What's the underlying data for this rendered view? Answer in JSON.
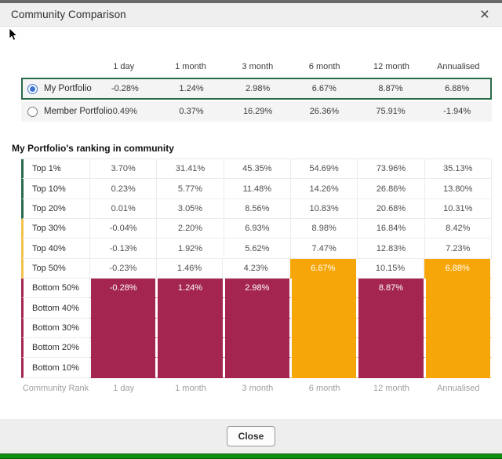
{
  "modal": {
    "title": "Community Comparison",
    "close_icon": "×",
    "close_button_label": "Close"
  },
  "columns": [
    "1 day",
    "1 month",
    "3 month",
    "6 month",
    "12 month",
    "Annualised"
  ],
  "portfolios": [
    {
      "label": "My Portfolio",
      "selected": true,
      "values": [
        "-0.28%",
        "1.24%",
        "2.98%",
        "6.67%",
        "8.87%",
        "6.88%"
      ]
    },
    {
      "label": "Member Portfolio",
      "selected": false,
      "values": [
        "0.49%",
        "0.37%",
        "16.29%",
        "26.36%",
        "75.91%",
        "-1.94%"
      ]
    }
  ],
  "ranking": {
    "title": "My Portfolio's ranking in community",
    "axis_label": "Community Rank",
    "colors": {
      "tier_green": "#2a6b4a",
      "tier_yellow": "#f0c24b",
      "tier_red": "#a4254f",
      "bar_red": "#a4254f",
      "bar_orange": "#f6a609",
      "selected_row_border": "#2a6b4a",
      "radio_selected": "#3b72d4",
      "bottom_bar_green": "#119111"
    },
    "rows": [
      {
        "label": "Top 1%",
        "tier": "green",
        "cells": [
          {
            "v": "3.70%",
            "bg": "w"
          },
          {
            "v": "31.41%",
            "bg": "w"
          },
          {
            "v": "45.35%",
            "bg": "w"
          },
          {
            "v": "54.69%",
            "bg": "w"
          },
          {
            "v": "73.96%",
            "bg": "w"
          },
          {
            "v": "35.13%",
            "bg": "w"
          }
        ]
      },
      {
        "label": "Top 10%",
        "tier": "green",
        "cells": [
          {
            "v": "0.23%",
            "bg": "w"
          },
          {
            "v": "5.77%",
            "bg": "w"
          },
          {
            "v": "11.48%",
            "bg": "w"
          },
          {
            "v": "14.26%",
            "bg": "w"
          },
          {
            "v": "26.86%",
            "bg": "w"
          },
          {
            "v": "13.80%",
            "bg": "w"
          }
        ]
      },
      {
        "label": "Top 20%",
        "tier": "green",
        "cells": [
          {
            "v": "0.01%",
            "bg": "w"
          },
          {
            "v": "3.05%",
            "bg": "w"
          },
          {
            "v": "8.56%",
            "bg": "w"
          },
          {
            "v": "10.83%",
            "bg": "w"
          },
          {
            "v": "20.68%",
            "bg": "w"
          },
          {
            "v": "10.31%",
            "bg": "w"
          }
        ]
      },
      {
        "label": "Top 30%",
        "tier": "yellow",
        "cells": [
          {
            "v": "-0.04%",
            "bg": "w"
          },
          {
            "v": "2.20%",
            "bg": "w"
          },
          {
            "v": "6.93%",
            "bg": "w"
          },
          {
            "v": "8.98%",
            "bg": "w"
          },
          {
            "v": "16.84%",
            "bg": "w"
          },
          {
            "v": "8.42%",
            "bg": "w"
          }
        ]
      },
      {
        "label": "Top 40%",
        "tier": "yellow",
        "cells": [
          {
            "v": "-0.13%",
            "bg": "w"
          },
          {
            "v": "1.92%",
            "bg": "w"
          },
          {
            "v": "5.62%",
            "bg": "w"
          },
          {
            "v": "7.47%",
            "bg": "w"
          },
          {
            "v": "12.83%",
            "bg": "w"
          },
          {
            "v": "7.23%",
            "bg": "w"
          }
        ]
      },
      {
        "label": "Top 50%",
        "tier": "yellow",
        "cells": [
          {
            "v": "-0.23%",
            "bg": "w"
          },
          {
            "v": "1.46%",
            "bg": "w"
          },
          {
            "v": "4.23%",
            "bg": "w"
          },
          {
            "v": "6.67%",
            "bg": "o"
          },
          {
            "v": "10.15%",
            "bg": "w"
          },
          {
            "v": "6.88%",
            "bg": "o"
          }
        ]
      },
      {
        "label": "Bottom 50%",
        "tier": "red",
        "cells": [
          {
            "v": "-0.28%",
            "bg": "r"
          },
          {
            "v": "1.24%",
            "bg": "r"
          },
          {
            "v": "2.98%",
            "bg": "r"
          },
          {
            "v": "",
            "bg": "o"
          },
          {
            "v": "8.87%",
            "bg": "r"
          },
          {
            "v": "",
            "bg": "o"
          }
        ]
      },
      {
        "label": "Bottom 40%",
        "tier": "red",
        "cells": [
          {
            "v": "",
            "bg": "r"
          },
          {
            "v": "",
            "bg": "r"
          },
          {
            "v": "",
            "bg": "r"
          },
          {
            "v": "",
            "bg": "o"
          },
          {
            "v": "",
            "bg": "r"
          },
          {
            "v": "",
            "bg": "o"
          }
        ]
      },
      {
        "label": "Bottom 30%",
        "tier": "red",
        "cells": [
          {
            "v": "",
            "bg": "r"
          },
          {
            "v": "",
            "bg": "r"
          },
          {
            "v": "",
            "bg": "r"
          },
          {
            "v": "",
            "bg": "o"
          },
          {
            "v": "",
            "bg": "r"
          },
          {
            "v": "",
            "bg": "o"
          }
        ]
      },
      {
        "label": "Bottom 20%",
        "tier": "red",
        "cells": [
          {
            "v": "",
            "bg": "r"
          },
          {
            "v": "",
            "bg": "r"
          },
          {
            "v": "",
            "bg": "r"
          },
          {
            "v": "",
            "bg": "o"
          },
          {
            "v": "",
            "bg": "r"
          },
          {
            "v": "",
            "bg": "o"
          }
        ]
      },
      {
        "label": "Bottom 10%",
        "tier": "red",
        "cells": [
          {
            "v": "",
            "bg": "r"
          },
          {
            "v": "",
            "bg": "r"
          },
          {
            "v": "",
            "bg": "r"
          },
          {
            "v": "",
            "bg": "o"
          },
          {
            "v": "",
            "bg": "r"
          },
          {
            "v": "",
            "bg": "o"
          }
        ]
      }
    ]
  }
}
